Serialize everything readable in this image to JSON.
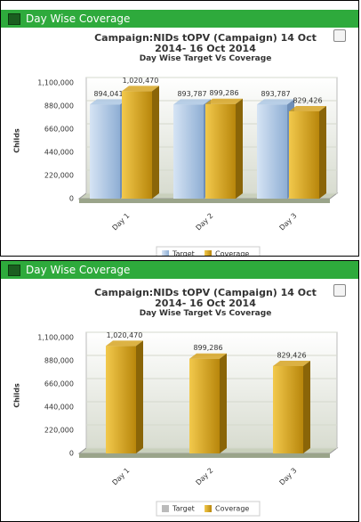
{
  "chart_data": [
    {
      "type": "bar",
      "panel_title": "Day Wise Coverage",
      "title": "Campaign:NIDs tOPV (Campaign) 14 Oct 2014- 16 Oct 2014",
      "subtitle": "Day Wise Target Vs Coverage",
      "y_label": "Childs",
      "categories": [
        "Day 1",
        "Day 2",
        "Day 3"
      ],
      "series": [
        {
          "name": "Target",
          "color": "#a9c4e4",
          "values": [
            894041,
            893787,
            893787
          ],
          "value_labels": [
            "894,041",
            "893,787",
            "893,787"
          ]
        },
        {
          "name": "Coverage",
          "color": "#d4a017",
          "values": [
            1020470,
            899286,
            829426
          ],
          "value_labels": [
            "1,020,470",
            "899,286",
            "829,426"
          ]
        }
      ],
      "ylim": [
        0,
        1100000
      ],
      "yticks": [
        0,
        {
          "value": 220000,
          "label": "220,000"
        },
        {
          "value": 440000,
          "label": "440,000"
        },
        {
          "value": 660000,
          "label": "660,000"
        },
        {
          "value": 880000,
          "label": "880,000"
        },
        {
          "value": 1100000,
          "label": "1,100,000"
        }
      ],
      "grid": true,
      "legend": "bottom"
    },
    {
      "type": "bar",
      "panel_title": "Day Wise Coverage",
      "title": "Campaign:NIDs tOPV (Campaign) 14 Oct 2014- 16 Oct 2014",
      "subtitle": "Day Wise Target Vs Coverage",
      "y_label": "Childs",
      "categories": [
        "Day 1",
        "Day 2",
        "Day 3"
      ],
      "series": [
        {
          "name": "Target",
          "color": "#a9c4e4",
          "hidden": true
        },
        {
          "name": "Coverage",
          "color": "#d4a017",
          "values": [
            1020470,
            899286,
            829426
          ],
          "value_labels": [
            "1,020,470",
            "899,286",
            "829,426"
          ]
        }
      ],
      "ylim": [
        0,
        1100000
      ],
      "yticks": [
        0,
        {
          "value": 220000,
          "label": "220,000"
        },
        {
          "value": 440000,
          "label": "440,000"
        },
        {
          "value": 660000,
          "label": "660,000"
        },
        {
          "value": 880000,
          "label": "880,000"
        },
        {
          "value": 1100000,
          "label": "1,100,000"
        }
      ],
      "grid": true,
      "legend": "bottom"
    }
  ]
}
